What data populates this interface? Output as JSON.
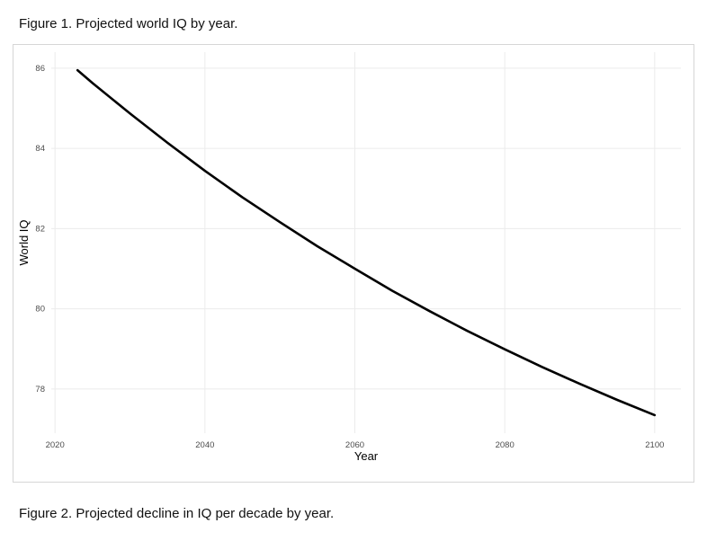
{
  "figure1": {
    "caption": "Figure 1. Projected world IQ by year."
  },
  "figure2": {
    "caption": "Figure 2. Projected decline in IQ per decade by year."
  },
  "chart_data": {
    "type": "line",
    "title": "Figure 1. Projected world IQ by year.",
    "xlabel": "Year",
    "ylabel": "World IQ",
    "x": [
      2023,
      2025,
      2030,
      2035,
      2040,
      2045,
      2050,
      2055,
      2060,
      2065,
      2070,
      2075,
      2080,
      2085,
      2090,
      2095,
      2100
    ],
    "y": [
      85.95,
      85.63,
      84.87,
      84.14,
      83.44,
      82.78,
      82.16,
      81.56,
      81.0,
      80.45,
      79.94,
      79.45,
      78.99,
      78.55,
      78.13,
      77.73,
      77.35
    ],
    "xticks": [
      2020,
      2040,
      2060,
      2080,
      2100
    ],
    "yticks": [
      78,
      80,
      82,
      84,
      86
    ],
    "xlim": [
      2019.5,
      2103.5
    ],
    "ylim": [
      76.9,
      86.4
    ],
    "grid": true,
    "legend": "none",
    "line_color": "#000000",
    "line_width": 2.6,
    "grid_color": "#ebebeb",
    "tick_color": "#4d4d4d",
    "panel_border_color": "#d6d6d6"
  }
}
